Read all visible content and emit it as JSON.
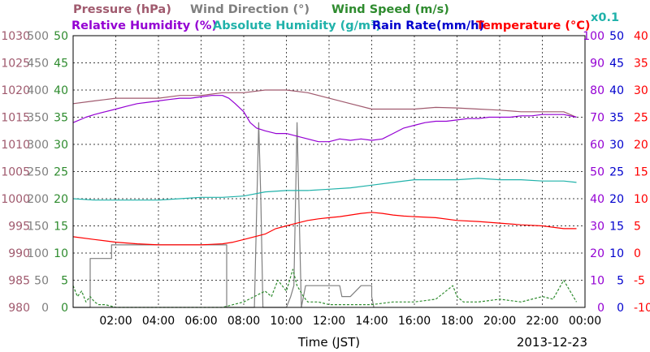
{
  "chart_data": {
    "type": "line",
    "title": "",
    "date": "2013-12-23",
    "xlabel": "Time (JST)",
    "x_ticks": [
      "02:00",
      "04:00",
      "06:00",
      "08:00",
      "10:00",
      "12:00",
      "14:00",
      "16:00",
      "18:00",
      "20:00",
      "22:00",
      "00:00"
    ],
    "xlim": [
      0,
      24
    ],
    "grid": true,
    "legend": {
      "row1": [
        {
          "label": "Pressure (hPa)",
          "color": "#a05a6e"
        },
        {
          "label": "Wind Direction (°)",
          "color": "#7f7f7f"
        },
        {
          "label": "Wind Speed (m/s)",
          "color": "#2e8b2e"
        }
      ],
      "row2": [
        {
          "label": "Relative Humidity (%)",
          "color": "#9400d3"
        },
        {
          "label": "Absolute Humidity (g/m³)",
          "color": "#20b2aa"
        },
        {
          "label": "Rain Rate(mm/h)",
          "color": "#0000cd"
        },
        {
          "label": "Temperature (°C)",
          "color": "#ff0000"
        }
      ],
      "scale_note": {
        "label": "x0.1",
        "color": "#20b2aa"
      }
    },
    "axes": {
      "pressure": {
        "ticks": [
          "980",
          "985",
          "990",
          "995",
          "1000",
          "1005",
          "1010",
          "1015",
          "1020",
          "1025",
          "1030"
        ],
        "color": "#a05a6e",
        "range": [
          980,
          1030
        ]
      },
      "wind_direction": {
        "ticks": [
          "0",
          "50",
          "100",
          "150",
          "200",
          "250",
          "300",
          "350",
          "400",
          "450",
          "500"
        ],
        "color": "#7f7f7f",
        "range": [
          0,
          500
        ]
      },
      "wind_speed": {
        "ticks": [
          "0",
          "5",
          "10",
          "15",
          "20",
          "25",
          "30",
          "35",
          "40",
          "45",
          "50"
        ],
        "color": "#2e8b2e",
        "range": [
          0,
          50
        ]
      },
      "humidity": {
        "ticks": [
          "0",
          "10",
          "20",
          "30",
          "40",
          "50",
          "60",
          "70",
          "80",
          "90",
          "100"
        ],
        "color": "#9400d3",
        "range": [
          0,
          100
        ]
      },
      "rain_rate": {
        "ticks": [
          "0",
          "5",
          "10",
          "15",
          "20",
          "25",
          "30",
          "35",
          "40",
          "45",
          "50"
        ],
        "color": "#0000cd",
        "range": [
          0,
          50
        ]
      },
      "temperature": {
        "ticks": [
          "-10",
          "-5",
          "0",
          "5",
          "10",
          "15",
          "20",
          "25",
          "30",
          "35",
          "40"
        ],
        "color": "#ff0000",
        "range": [
          -10,
          40
        ]
      }
    },
    "series": [
      {
        "name": "Pressure (hPa)",
        "axis": "pressure",
        "color": "#a05a6e",
        "x": [
          0,
          1,
          2,
          3,
          4,
          5,
          6,
          7,
          8,
          9,
          10,
          11,
          12,
          13,
          14,
          15,
          16,
          17,
          18,
          19,
          20,
          21,
          22,
          23,
          23.6
        ],
        "y": [
          1017.5,
          1018,
          1018.5,
          1018.5,
          1018.5,
          1019,
          1019,
          1019.5,
          1019.5,
          1020,
          1020,
          1019.5,
          1018.5,
          1017.5,
          1016.5,
          1016.5,
          1016.5,
          1016.8,
          1016.7,
          1016.5,
          1016.3,
          1016,
          1016,
          1016,
          1015
        ]
      },
      {
        "name": "Relative Humidity (%)",
        "axis": "humidity",
        "color": "#9400d3",
        "x": [
          0,
          0.6,
          1,
          1.5,
          2,
          2.5,
          3,
          3.5,
          4,
          4.5,
          5,
          5.5,
          6,
          6.5,
          7,
          7.3,
          7.6,
          8,
          8.3,
          8.6,
          9,
          9.5,
          10,
          10.5,
          11,
          11.5,
          12,
          12.5,
          13,
          13.5,
          14,
          14.5,
          15,
          15.5,
          16,
          16.5,
          17,
          17.5,
          18,
          18.5,
          19,
          19.5,
          20,
          20.5,
          21,
          21.5,
          22,
          22.5,
          23,
          23.6
        ],
        "y": [
          68,
          70,
          71,
          72,
          73,
          74,
          75,
          75.5,
          76,
          76.5,
          77,
          77,
          77.5,
          78,
          78,
          77,
          75,
          72,
          68,
          66,
          65,
          64,
          64,
          63,
          62,
          61,
          61,
          62,
          61.5,
          62,
          61.5,
          62,
          64,
          66,
          67,
          68,
          68.5,
          68.5,
          69,
          69.5,
          69.5,
          70,
          70,
          70,
          70.5,
          70.5,
          71,
          71,
          71,
          70
        ]
      },
      {
        "name": "Absolute Humidity (g/m³) x0.1",
        "axis": "humidity",
        "color": "#20b2aa",
        "x": [
          0,
          1,
          2,
          3,
          4,
          5,
          6,
          7,
          8,
          9,
          10,
          11,
          12,
          13,
          14,
          15,
          16,
          17,
          18,
          19,
          20,
          21,
          22,
          23,
          23.6
        ],
        "y": [
          40,
          39.5,
          39.5,
          39.5,
          39.5,
          40,
          40.5,
          40.5,
          41,
          42.5,
          43,
          43,
          43.5,
          44,
          45,
          46,
          47,
          47,
          47,
          47.5,
          47,
          47,
          46.5,
          46.5,
          46
        ]
      },
      {
        "name": "Temperature (°C)",
        "axis": "temperature",
        "color": "#ff0000",
        "x": [
          0,
          1,
          2,
          3,
          4,
          5,
          6,
          7,
          7.5,
          8,
          8.5,
          9,
          9.5,
          10,
          10.5,
          11,
          11.5,
          12,
          12.5,
          13,
          13.5,
          14,
          14.5,
          15,
          15.5,
          16,
          17,
          18,
          19,
          20,
          21,
          22,
          23,
          23.6
        ],
        "y": [
          3,
          2.5,
          2,
          1.7,
          1.5,
          1.5,
          1.5,
          1.7,
          2,
          2.5,
          3,
          3.5,
          4.5,
          5,
          5.5,
          6,
          6.3,
          6.5,
          6.7,
          7,
          7.3,
          7.5,
          7.3,
          7,
          6.8,
          6.7,
          6.5,
          6,
          5.8,
          5.5,
          5.2,
          5,
          4.5,
          4.5
        ]
      },
      {
        "name": "Wind Direction (°)",
        "axis": "wind_direction",
        "color": "#7f7f7f",
        "x": [
          0,
          0.8,
          0.8,
          1.8,
          1.8,
          7.2,
          7.2,
          8.5,
          8.7,
          8.8,
          8.9,
          9.0,
          10.0,
          10.2,
          10.35,
          10.5,
          10.7,
          10.9,
          11.0,
          12.5,
          12.6,
          13.0,
          13.5,
          14.0,
          14.0,
          14.1
        ],
        "y": [
          0,
          0,
          90,
          90,
          115,
          115,
          0,
          0,
          340,
          200,
          0,
          0,
          0,
          20,
          40,
          340,
          0,
          40,
          40,
          40,
          20,
          20,
          40,
          40,
          20,
          0
        ]
      },
      {
        "name": "Wind Speed (m/s)",
        "axis": "wind_speed",
        "color": "#2e8b2e",
        "x": [
          0,
          0.2,
          0.4,
          0.6,
          0.8,
          1.0,
          1.2,
          1.5,
          2,
          3,
          4,
          5,
          6,
          7,
          7.5,
          8,
          8.5,
          9,
          9.3,
          9.6,
          10,
          10.3,
          10.5,
          10.8,
          11,
          11.5,
          12,
          13,
          14,
          15,
          16,
          17,
          17.8,
          18,
          18.3,
          19,
          20,
          21,
          22,
          22.5,
          23,
          23.6
        ],
        "y": [
          4,
          2,
          3,
          1,
          2,
          1,
          0.5,
          0.5,
          0,
          0,
          0,
          0,
          0,
          0,
          0.5,
          1,
          2,
          3,
          2,
          5,
          3,
          7,
          4,
          2,
          1,
          1,
          0.5,
          0.5,
          0.5,
          1,
          1,
          1.5,
          4,
          2,
          1,
          1,
          1.5,
          1,
          2,
          1.5,
          5,
          1
        ]
      }
    ]
  }
}
